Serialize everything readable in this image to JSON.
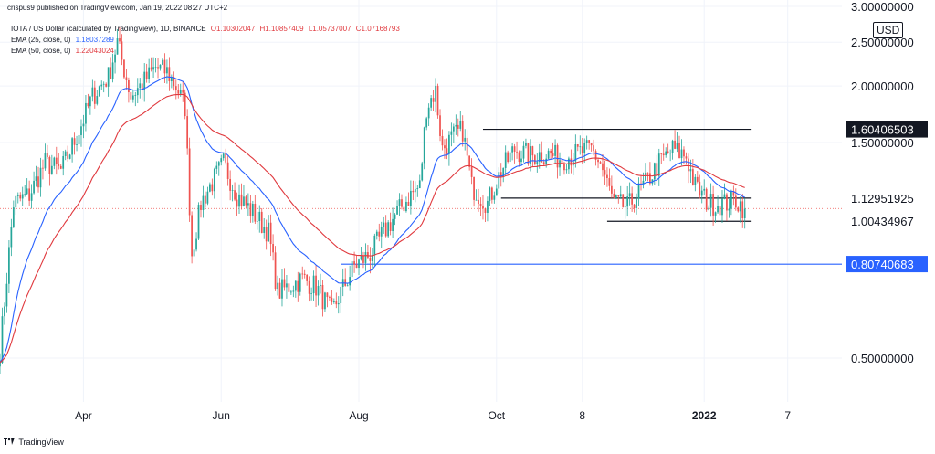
{
  "header": {
    "publisher": "crispus9 published on TradingView.com, Jan 19, 2022 08:27 UTC+2"
  },
  "legend": {
    "symbol": "IOTA / US Dollar (calculated by TradingView), 1D, BINANCE",
    "ohlc": [
      "O1.10302047",
      "H1.10857409",
      "L1.05737007",
      "C1.07168793"
    ],
    "ema25": {
      "label": "EMA (25, close, 0)",
      "value": "1.18037289"
    },
    "ema50": {
      "label": "EMA (50, close, 0)",
      "value": "1.22043024"
    }
  },
  "currency": "USD",
  "brand": "TradingView",
  "colors": {
    "up": "#26a69a",
    "down": "#ef5350",
    "ema25": "#2962ff",
    "ema50": "#e0393e",
    "level": "#131722",
    "support": "#2962ff"
  },
  "chart_data": {
    "type": "candlestick",
    "x_ticks": [
      "Apr",
      "Jun",
      "Aug",
      "Oct",
      "8",
      "2022",
      "7"
    ],
    "y_ticks": [
      "0.50000000",
      "1.50000000",
      "2.00000000",
      "2.50000000",
      "3.00000000"
    ],
    "y_scale": "log",
    "ylim": [
      0.4,
      3.1
    ],
    "x_range": [
      "2021-02-23",
      "2022-03-03"
    ],
    "price_labels": [
      {
        "value": 1.60406503,
        "text": "1.60406503",
        "style": "dark"
      },
      {
        "value": 1.12951925,
        "text": "1.12951925",
        "style": "plain"
      },
      {
        "value": 1.00434967,
        "text": "1.00434967",
        "style": "plain"
      },
      {
        "value": 0.80740683,
        "text": "0.80740683",
        "style": "blue"
      }
    ],
    "horizontal_lines": [
      {
        "value": 1.604,
        "from": "2021-09-25",
        "to": "2022-01-22",
        "color": "#131722"
      },
      {
        "value": 1.13,
        "from": "2021-10-03",
        "to": "2022-01-22",
        "color": "#131722"
      },
      {
        "value": 1.004,
        "from": "2021-11-19",
        "to": "2022-01-22",
        "color": "#131722"
      },
      {
        "value": 0.807,
        "from": "2021-07-24",
        "to": "2022-03-03",
        "color": "#2962ff"
      }
    ],
    "last_price": 1.0717,
    "anchors": [
      [
        "2021-02-23",
        0.52
      ],
      [
        "2021-03-01",
        1.1
      ],
      [
        "2021-03-08",
        1.15
      ],
      [
        "2021-03-15",
        1.35
      ],
      [
        "2021-03-22",
        1.3
      ],
      [
        "2021-03-29",
        1.55
      ],
      [
        "2021-04-05",
        1.9
      ],
      [
        "2021-04-12",
        2.1
      ],
      [
        "2021-04-16",
        2.5
      ],
      [
        "2021-04-22",
        1.9
      ],
      [
        "2021-04-28",
        2.05
      ],
      [
        "2021-05-03",
        2.2
      ],
      [
        "2021-05-08",
        2.15
      ],
      [
        "2021-05-12",
        2.0
      ],
      [
        "2021-05-16",
        1.8
      ],
      [
        "2021-05-19",
        0.85
      ],
      [
        "2021-05-23",
        1.1
      ],
      [
        "2021-05-27",
        1.2
      ],
      [
        "2021-06-02",
        1.35
      ],
      [
        "2021-06-08",
        1.15
      ],
      [
        "2021-06-15",
        1.05
      ],
      [
        "2021-06-22",
        0.95
      ],
      [
        "2021-06-26",
        0.7
      ],
      [
        "2021-07-01",
        0.72
      ],
      [
        "2021-07-07",
        0.75
      ],
      [
        "2021-07-13",
        0.72
      ],
      [
        "2021-07-20",
        0.63
      ],
      [
        "2021-07-24",
        0.7
      ],
      [
        "2021-07-30",
        0.8
      ],
      [
        "2021-08-06",
        0.85
      ],
      [
        "2021-08-12",
        0.95
      ],
      [
        "2021-08-18",
        1.05
      ],
      [
        "2021-08-24",
        1.15
      ],
      [
        "2021-08-28",
        1.2
      ],
      [
        "2021-08-31",
        1.8
      ],
      [
        "2021-09-04",
        1.95
      ],
      [
        "2021-09-07",
        1.45
      ],
      [
        "2021-09-12",
        1.55
      ],
      [
        "2021-09-16",
        1.6
      ],
      [
        "2021-09-20",
        1.2
      ],
      [
        "2021-09-27",
        1.1
      ],
      [
        "2021-10-03",
        1.3
      ],
      [
        "2021-10-09",
        1.45
      ],
      [
        "2021-10-16",
        1.4
      ],
      [
        "2021-10-23",
        1.42
      ],
      [
        "2021-10-30",
        1.38
      ],
      [
        "2021-11-06",
        1.42
      ],
      [
        "2021-11-12",
        1.45
      ],
      [
        "2021-11-16",
        1.35
      ],
      [
        "2021-11-22",
        1.1
      ],
      [
        "2021-11-28",
        1.08
      ],
      [
        "2021-12-05",
        1.2
      ],
      [
        "2021-12-12",
        1.35
      ],
      [
        "2021-12-18",
        1.45
      ],
      [
        "2021-12-24",
        1.4
      ],
      [
        "2021-12-28",
        1.2
      ],
      [
        "2022-01-03",
        1.1
      ],
      [
        "2022-01-10",
        1.1
      ],
      [
        "2022-01-15",
        1.12
      ],
      [
        "2022-01-19",
        1.07
      ]
    ]
  }
}
